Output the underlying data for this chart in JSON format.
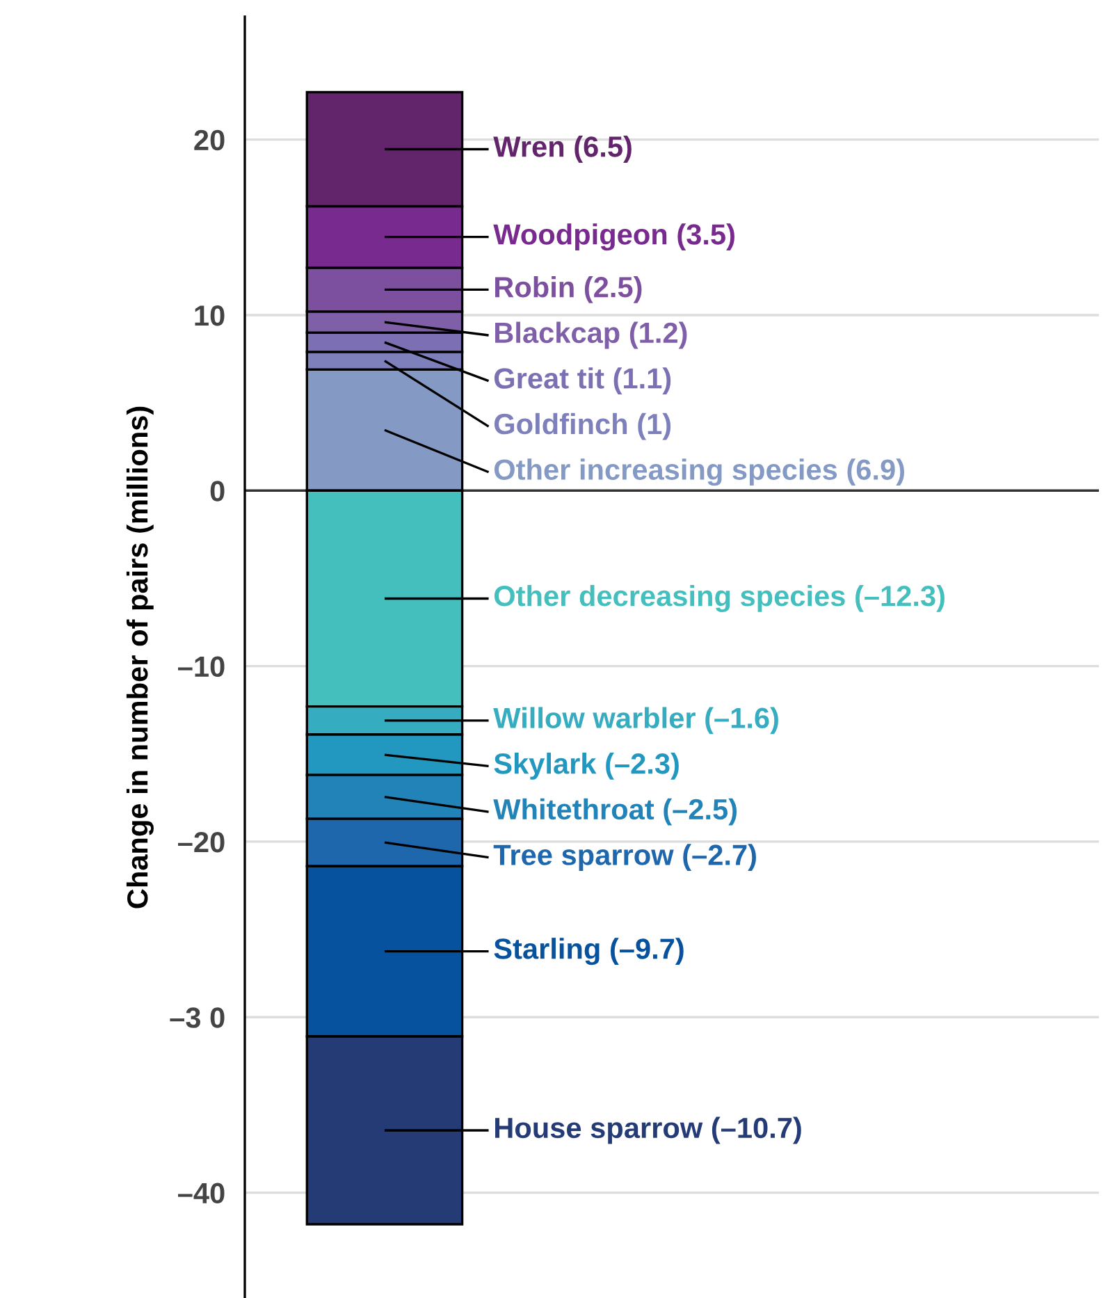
{
  "chart_data": {
    "type": "bar",
    "stacked": true,
    "ylabel": "Change in number of pairs (millions)",
    "categories": [
      null
    ],
    "series": [
      {
        "name": "Other increasing species (6.9)",
        "color": "#8499c4",
        "values": [
          6.9
        ]
      },
      {
        "name": "Goldfinch (1)",
        "color": "#7d80bb",
        "values": [
          1
        ]
      },
      {
        "name": "Great tit (1.1)",
        "color": "#7c6fb3",
        "values": [
          1.1
        ]
      },
      {
        "name": "Blackcap (1.2)",
        "color": "#7e5fa8",
        "values": [
          1.2
        ]
      },
      {
        "name": "Robin (2.5)",
        "color": "#7d4f9f",
        "values": [
          2.5
        ]
      },
      {
        "name": "Woodpigeon (3.5)",
        "color": "#782a8e",
        "values": [
          3.5
        ]
      },
      {
        "name": "Wren (6.5)",
        "color": "#62246b",
        "values": [
          6.5
        ]
      },
      {
        "name": "Other decreasing species (–12.3)",
        "color": "#45bfbe",
        "values": [
          -12.3
        ]
      },
      {
        "name": "Willow warbler (–1.6)",
        "color": "#35acc0",
        "values": [
          -1.6
        ]
      },
      {
        "name": "Skylark (–2.3)",
        "color": "#2298c0",
        "values": [
          -2.3
        ]
      },
      {
        "name": "Whitethroat (–2.5)",
        "color": "#2183b8",
        "values": [
          -2.5
        ]
      },
      {
        "name": "Tree sparrow (–2.7)",
        "color": "#1f67ad",
        "values": [
          -2.7
        ]
      },
      {
        "name": "Starling (–9.7)",
        "color": "#07529e",
        "values": [
          -9.7
        ]
      },
      {
        "name": "House sparrow (–10.7)",
        "color": "#243b76",
        "values": [
          -10.7
        ]
      }
    ],
    "ylim": [
      -46,
      27
    ],
    "yticks": [
      20,
      10,
      0,
      {
        "value": -10,
        "label": "–10"
      },
      {
        "value": -20,
        "label": "–20"
      },
      {
        "value": -30,
        "label": "–3 0"
      },
      {
        "value": -40,
        "label": "–40"
      }
    ],
    "grid": "y",
    "tick_labels": "y",
    "legend": "right",
    "ref_lines": [
      {
        "axis": "y",
        "value": 0,
        "label": null,
        "color": "#333333"
      }
    ]
  }
}
